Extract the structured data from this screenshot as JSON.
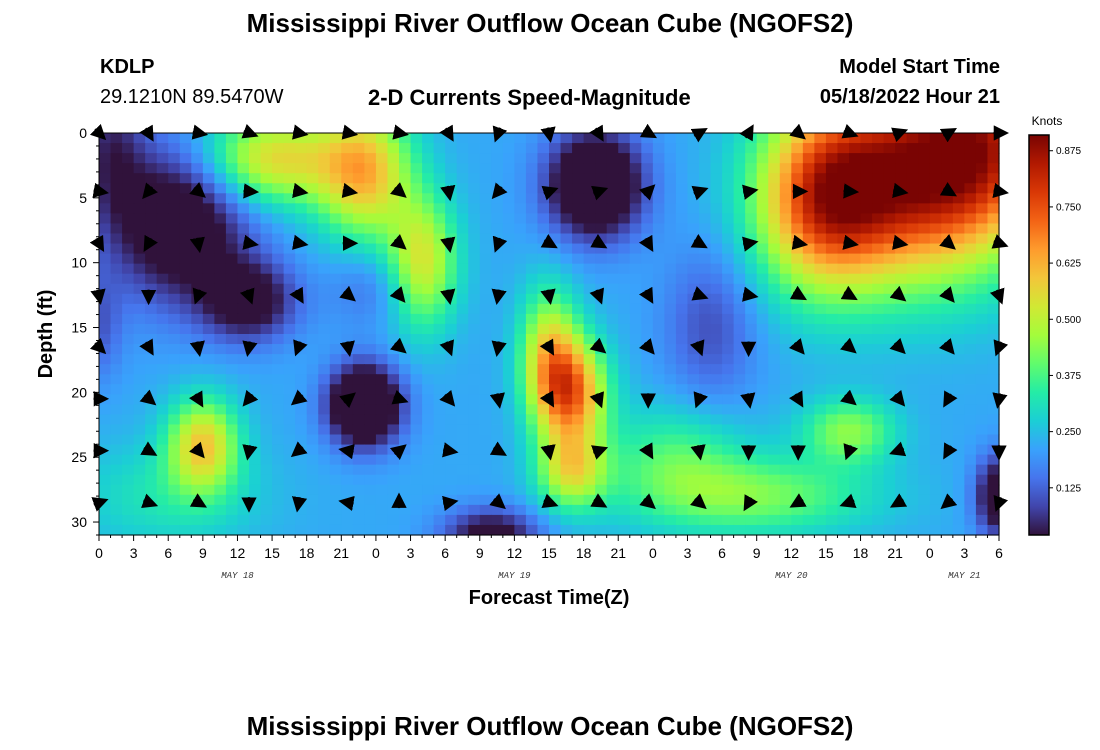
{
  "titles": {
    "top": "Mississippi River Outflow Ocean Cube (NGOFS2)",
    "bottom": "Mississippi River Outflow Ocean Cube (NGOFS2)"
  },
  "station": {
    "id": "KDLP",
    "coords": "29.1210N  89.5470W"
  },
  "model": {
    "label": "Model Start Time",
    "value": "05/18/2022 Hour 21"
  },
  "chart_data": {
    "type": "heatmap",
    "title": "2-D Currents Speed-Magnitude",
    "xlabel": "Forecast Time(Z)",
    "ylabel": "Depth (ft)",
    "colorbar_label": "Knots",
    "x_ticks": [
      "0",
      "3",
      "6",
      "9",
      "12",
      "15",
      "18",
      "21",
      "0",
      "3",
      "6",
      "9",
      "12",
      "15",
      "18",
      "21",
      "0",
      "3",
      "6",
      "9",
      "12",
      "15",
      "18",
      "21",
      "0",
      "3",
      "6"
    ],
    "x_range_hours": [
      0,
      78
    ],
    "date_labels": [
      {
        "text": "MAY 18",
        "hour": 12
      },
      {
        "text": "MAY 19",
        "hour": 36
      },
      {
        "text": "MAY 20",
        "hour": 60
      },
      {
        "text": "MAY 21",
        "hour": 75
      }
    ],
    "y_ticks": [
      "0",
      "5",
      "10",
      "15",
      "20",
      "25",
      "30"
    ],
    "y_range_ft": [
      0,
      31
    ],
    "colorbar_ticks": [
      "0.875",
      "0.750",
      "0.625",
      "0.500",
      "0.375",
      "0.250",
      "0.125"
    ],
    "colorbar_range": [
      0.02,
      0.91
    ],
    "colormap": [
      "#30123b",
      "#4145ab",
      "#4675ed",
      "#39a2fc",
      "#1bcfd4",
      "#24eca6",
      "#61fc6c",
      "#a4fc3b",
      "#d1e834",
      "#f3c63a",
      "#fe9b2d",
      "#f36315",
      "#d93806",
      "#b11901",
      "#7a0403"
    ],
    "speed_bumps": [
      {
        "h": 63,
        "d": 5,
        "sh": 6,
        "sd": 7,
        "a": 0.55
      },
      {
        "h": 72,
        "d": 3,
        "sh": 8,
        "sd": 8,
        "a": 0.6
      },
      {
        "h": 78,
        "d": 0,
        "sh": 6,
        "sd": 7,
        "a": 0.3
      },
      {
        "h": 15,
        "d": 2,
        "sh": 6,
        "sd": 3.5,
        "a": 0.35
      },
      {
        "h": 23,
        "d": 3,
        "sh": 4,
        "sd": 5,
        "a": 0.38
      },
      {
        "h": 28,
        "d": 10,
        "sh": 3,
        "sd": 5,
        "a": 0.32
      },
      {
        "h": 41,
        "d": 20,
        "sh": 3,
        "sd": 4,
        "a": 0.45
      },
      {
        "h": 39,
        "d": 17,
        "sh": 2.5,
        "sd": 5,
        "a": 0.3
      },
      {
        "h": 41,
        "d": 26,
        "sh": 3,
        "sd": 3,
        "a": 0.3
      },
      {
        "h": 9,
        "d": 24,
        "sh": 3,
        "sd": 3.5,
        "a": 0.35
      },
      {
        "h": 65,
        "d": 23,
        "sh": 4,
        "sd": 2.5,
        "a": 0.22
      },
      {
        "h": 50,
        "d": 25,
        "sh": 6,
        "sd": 4,
        "a": 0.15
      },
      {
        "h": 57,
        "d": 28,
        "sh": 10,
        "sd": 3,
        "a": 0.2
      },
      {
        "h": 6,
        "d": 28,
        "sh": 8,
        "sd": 4,
        "a": 0.1
      },
      {
        "h": 7,
        "d": 7,
        "sh": 6,
        "sd": 6,
        "a": -0.3
      },
      {
        "h": 13,
        "d": 13,
        "sh": 4,
        "sd": 3,
        "a": -0.25
      },
      {
        "h": 23,
        "d": 21,
        "sh": 3,
        "sd": 3,
        "a": -0.45
      },
      {
        "h": 43,
        "d": 4,
        "sh": 4,
        "sd": 4,
        "a": -0.4
      },
      {
        "h": 1,
        "d": 1,
        "sh": 3,
        "sd": 6,
        "a": -0.15
      },
      {
        "h": 53,
        "d": 15,
        "sh": 4,
        "sd": 6,
        "a": -0.12
      },
      {
        "h": 34,
        "d": 31,
        "sh": 4,
        "sd": 2,
        "a": -0.25
      },
      {
        "h": 78,
        "d": 28,
        "sh": 2,
        "sd": 3,
        "a": -0.3
      },
      {
        "h": 0,
        "d": 15,
        "sh": 2,
        "sd": 4,
        "a": -0.1
      },
      {
        "h": 24,
        "d": 12,
        "sh": 4,
        "sd": 3,
        "a": -0.08
      }
    ],
    "base_speed": 0.22,
    "arrow_rows_ft": [
      0,
      4.5,
      8.5,
      12.5,
      16.5,
      20.5,
      24.5,
      28.5
    ],
    "arrow_cols_hours": [
      0,
      4.3,
      8.6,
      13,
      17.3,
      21.6,
      26,
      30.3,
      34.6,
      39,
      43.3,
      47.6,
      52,
      56.3,
      60.6,
      65,
      69.3,
      73.6,
      78
    ],
    "arrow_angles_deg": [
      [
        45,
        60,
        10,
        20,
        10,
        10,
        10,
        60,
        110,
        80,
        60,
        30,
        -30,
        -60,
        40,
        20,
        -20,
        -30,
        0
      ],
      [
        10,
        130,
        40,
        5,
        10,
        10,
        40,
        80,
        130,
        -20,
        -20,
        -45,
        -20,
        -10,
        0,
        5,
        10,
        30,
        10
      ],
      [
        60,
        120,
        80,
        10,
        10,
        0,
        40,
        80,
        110,
        30,
        30,
        60,
        30,
        -10,
        10,
        10,
        10,
        40,
        20
      ],
      [
        80,
        90,
        110,
        70,
        60,
        40,
        50,
        80,
        100,
        80,
        70,
        60,
        20,
        10,
        30,
        30,
        40,
        50,
        70
      ],
      [
        45,
        60,
        80,
        100,
        110,
        80,
        40,
        70,
        100,
        60,
        40,
        50,
        70,
        90,
        50,
        40,
        45,
        50,
        110
      ],
      [
        0,
        40,
        60,
        130,
        140,
        -40,
        20,
        50,
        80,
        60,
        70,
        90,
        110,
        80,
        60,
        40,
        50,
        120,
        100
      ],
      [
        0,
        30,
        50,
        100,
        140,
        -170,
        -40,
        10,
        30,
        80,
        -20,
        60,
        80,
        90,
        90,
        110,
        160,
        120,
        90
      ],
      [
        -20,
        20,
        30,
        90,
        100,
        -170,
        -90,
        -10,
        40,
        20,
        30,
        40,
        40,
        120,
        150,
        160,
        150,
        140,
        110
      ]
    ]
  }
}
